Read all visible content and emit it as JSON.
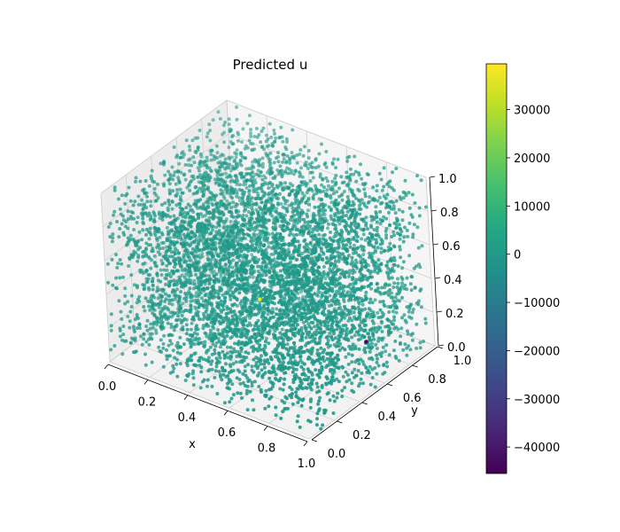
{
  "chart_data": {
    "type": "scatter",
    "title": "Predicted u",
    "xlabel": "x",
    "ylabel": "y",
    "zlabel": "",
    "xlim": [
      0.0,
      1.0
    ],
    "ylim": [
      0.0,
      1.0
    ],
    "zlim": [
      0.0,
      1.0
    ],
    "x_ticks": [
      "0.0",
      "0.2",
      "0.4",
      "0.6",
      "0.8",
      "1.0"
    ],
    "y_ticks": [
      "0.0",
      "0.2",
      "0.4",
      "0.6",
      "0.8",
      "1.0"
    ],
    "z_ticks": [
      "0.0",
      "0.2",
      "0.4",
      "0.6",
      "0.8",
      "1.0"
    ],
    "grid": true,
    "projection": "3d",
    "points_description_value_typical": 0,
    "point_count_estimate": 6000,
    "outliers": [
      {
        "x": 0.45,
        "y": 0.5,
        "z": 0.3,
        "u": 39000
      },
      {
        "x": 0.95,
        "y": 0.55,
        "z": 0.25,
        "u": -45000
      }
    ],
    "colorbar": {
      "colormap": "viridis",
      "min": -45500,
      "max": 39500,
      "ticks": [
        "30000",
        "20000",
        "10000",
        "0",
        "−10000",
        "−20000",
        "−30000",
        "−40000"
      ],
      "tick_values": [
        30000,
        20000,
        10000,
        0,
        -10000,
        -20000,
        -30000,
        -40000
      ]
    },
    "colors": {
      "typical_point": "#21918c",
      "high_outlier": "#fde725",
      "low_outlier": "#440154"
    }
  }
}
